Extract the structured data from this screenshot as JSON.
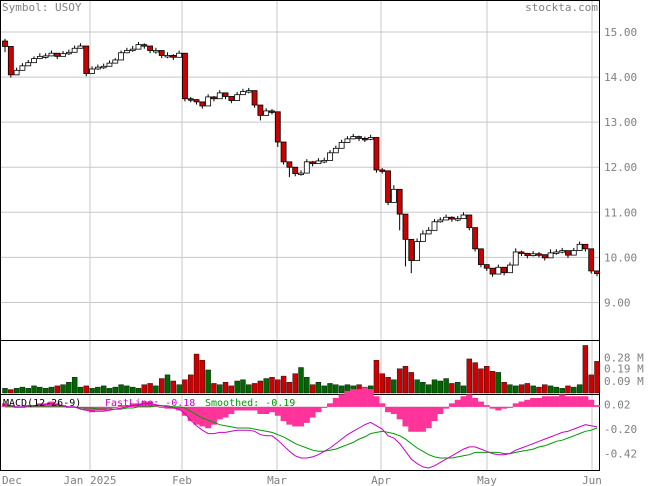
{
  "header": {
    "symbol_text": "Symbol: USOY",
    "site": "stockta.com"
  },
  "macd": {
    "title": "MACD(12-26-9)",
    "fast_text": "FastLine: -0.18",
    "smooth_text": "Smoothed: -0.19",
    "fast_color": "#cc00cc",
    "smooth_color": "#009900",
    "hist_color": "#ff3399"
  },
  "colors": {
    "up": "#ffffff",
    "down": "#cc0000",
    "vol_up": "#006600",
    "vol_down": "#cc0000",
    "grid": "#c8c8c8",
    "axis_text": "#808080"
  },
  "chart_data": [
    {
      "type": "candlestick",
      "title": "",
      "ylabel": "",
      "ylim": [
        8.3,
        15.4
      ],
      "yticks": [
        9.0,
        10.0,
        11.0,
        12.0,
        13.0,
        14.0,
        15.0
      ],
      "ytick_labels": [
        "9.00",
        "10.00",
        "11.00",
        "12.00",
        "13.00",
        "14.00",
        "15.00"
      ],
      "x_labels": [
        "Dec",
        "Jan 2025",
        "Feb",
        "Mar",
        "Apr",
        "May",
        "Jun"
      ],
      "closes": [
        14.68,
        14.05,
        14.15,
        14.25,
        14.32,
        14.41,
        14.46,
        14.47,
        14.53,
        14.46,
        14.52,
        14.55,
        14.64,
        14.69,
        14.08,
        14.18,
        14.22,
        14.24,
        14.31,
        14.38,
        14.54,
        14.59,
        14.62,
        14.72,
        14.69,
        14.59,
        14.59,
        14.48,
        14.48,
        14.44,
        14.53,
        13.52,
        13.5,
        13.45,
        13.36,
        13.56,
        13.52,
        13.65,
        13.57,
        13.48,
        13.61,
        13.68,
        13.7,
        13.38,
        13.15,
        13.25,
        13.23,
        12.56,
        12.12,
        12.0,
        11.86,
        11.87,
        12.12,
        12.08,
        12.14,
        12.15,
        12.32,
        12.42,
        12.55,
        12.63,
        12.68,
        12.64,
        12.62,
        12.66,
        11.94,
        11.92,
        11.22,
        11.51,
        10.96,
        10.4,
        9.93,
        10.35,
        10.52,
        10.6,
        10.79,
        10.83,
        10.89,
        10.85,
        10.86,
        10.94,
        10.66,
        10.19,
        9.84,
        9.76,
        9.63,
        9.78,
        9.66,
        9.83,
        10.12,
        10.09,
        10.04,
        10.08,
        10.06,
        9.99,
        10.1,
        10.12,
        10.15,
        10.05,
        10.15,
        10.29,
        10.19,
        9.7,
        9.64
      ],
      "highs": [
        14.85,
        14.1,
        14.21,
        14.31,
        14.38,
        14.46,
        14.53,
        14.53,
        14.59,
        14.53,
        14.58,
        14.61,
        14.7,
        14.75,
        14.13,
        14.24,
        14.28,
        14.3,
        14.37,
        14.42,
        14.59,
        14.65,
        14.69,
        14.78,
        14.75,
        14.64,
        14.65,
        14.54,
        14.55,
        14.51,
        14.59,
        13.58,
        13.56,
        13.51,
        13.43,
        13.62,
        13.58,
        13.71,
        13.63,
        13.54,
        13.67,
        13.74,
        13.76,
        13.44,
        13.22,
        13.31,
        13.29,
        12.7,
        12.2,
        12.07,
        11.92,
        11.93,
        12.18,
        12.14,
        12.2,
        12.21,
        12.38,
        12.48,
        12.61,
        12.69,
        12.74,
        12.7,
        12.68,
        12.72,
        12.0,
        11.98,
        11.28,
        11.6,
        11.02,
        10.6,
        10.05,
        10.42,
        10.6,
        10.67,
        10.85,
        10.89,
        10.95,
        10.91,
        10.92,
        11.0,
        10.88,
        10.25,
        9.9,
        9.82,
        9.69,
        9.84,
        9.72,
        9.89,
        10.2,
        10.15,
        10.1,
        10.14,
        10.12,
        10.06,
        10.18,
        10.18,
        10.21,
        10.14,
        10.21,
        10.35,
        10.25,
        9.76,
        9.7
      ],
      "lows": [
        14.55,
        13.99,
        14.09,
        14.19,
        14.26,
        14.35,
        14.4,
        14.41,
        14.47,
        14.4,
        14.46,
        14.49,
        14.58,
        14.63,
        14.02,
        14.12,
        14.16,
        14.18,
        14.25,
        14.32,
        14.48,
        14.53,
        14.56,
        14.66,
        14.63,
        14.53,
        14.52,
        14.42,
        14.42,
        14.38,
        14.47,
        13.46,
        13.44,
        13.39,
        13.3,
        13.5,
        13.46,
        13.59,
        13.51,
        13.42,
        13.55,
        13.62,
        13.64,
        13.32,
        13.04,
        13.19,
        13.17,
        12.45,
        12.06,
        11.78,
        11.8,
        11.81,
        12.06,
        12.02,
        12.08,
        12.09,
        12.26,
        12.36,
        12.49,
        12.57,
        12.62,
        12.58,
        12.56,
        12.6,
        11.88,
        11.86,
        11.16,
        11.45,
        10.6,
        9.8,
        9.65,
        10.28,
        10.46,
        10.54,
        10.73,
        10.77,
        10.83,
        10.79,
        10.8,
        10.88,
        10.6,
        10.13,
        9.78,
        9.7,
        9.57,
        9.72,
        9.6,
        9.77,
        10.06,
        10.03,
        9.98,
        10.02,
        10.0,
        9.93,
        10.04,
        10.06,
        10.09,
        9.99,
        10.09,
        10.23,
        10.13,
        9.64,
        9.58
      ],
      "volumes": [
        0.03,
        0.02,
        0.03,
        0.04,
        0.03,
        0.05,
        0.04,
        0.03,
        0.04,
        0.05,
        0.06,
        0.08,
        0.12,
        0.04,
        0.05,
        0.03,
        0.04,
        0.05,
        0.03,
        0.04,
        0.06,
        0.05,
        0.04,
        0.03,
        0.06,
        0.07,
        0.05,
        0.11,
        0.14,
        0.09,
        0.06,
        0.1,
        0.14,
        0.31,
        0.26,
        0.18,
        0.07,
        0.06,
        0.08,
        0.05,
        0.09,
        0.1,
        0.06,
        0.07,
        0.09,
        0.11,
        0.12,
        0.1,
        0.13,
        0.08,
        0.15,
        0.2,
        0.12,
        0.06,
        0.08,
        0.05,
        0.07,
        0.06,
        0.05,
        0.06,
        0.05,
        0.06,
        0.04,
        0.05,
        0.26,
        0.15,
        0.12,
        0.1,
        0.19,
        0.21,
        0.16,
        0.1,
        0.08,
        0.06,
        0.1,
        0.09,
        0.11,
        0.07,
        0.08,
        0.05,
        0.27,
        0.24,
        0.19,
        0.21,
        0.17,
        0.16,
        0.08,
        0.06,
        0.05,
        0.06,
        0.07,
        0.05,
        0.04,
        0.06,
        0.05,
        0.04,
        0.03,
        0.05,
        0.04,
        0.06,
        0.38,
        0.14,
        0.25
      ],
      "vol_ylim": [
        0,
        0.4
      ],
      "vol_ticks": [
        0.09,
        0.19,
        0.28
      ],
      "vol_tick_labels": [
        "0.09 M",
        "0.19 M",
        "0.28 M"
      ]
    },
    {
      "type": "line",
      "title": "MACD(12-26-9)",
      "ylim": [
        -0.55,
        0.08
      ],
      "yticks": [
        0.02,
        -0.2,
        -0.42
      ],
      "ytick_labels": [
        "0.02",
        "-0.20",
        "-0.42"
      ],
      "series": [
        {
          "name": "FastLine",
          "values": [
            0.02,
            0.01,
            0.0,
            0.0,
            0.01,
            0.01,
            0.02,
            0.02,
            0.03,
            0.02,
            0.01,
            0.0,
            0.0,
            -0.02,
            -0.03,
            -0.04,
            -0.04,
            -0.04,
            -0.03,
            -0.02,
            -0.01,
            0.0,
            0.01,
            0.02,
            0.03,
            0.03,
            0.02,
            0.01,
            0.0,
            -0.01,
            -0.02,
            -0.06,
            -0.12,
            -0.17,
            -0.21,
            -0.24,
            -0.24,
            -0.23,
            -0.23,
            -0.22,
            -0.21,
            -0.21,
            -0.21,
            -0.22,
            -0.25,
            -0.26,
            -0.26,
            -0.3,
            -0.35,
            -0.4,
            -0.44,
            -0.46,
            -0.46,
            -0.45,
            -0.43,
            -0.4,
            -0.37,
            -0.33,
            -0.29,
            -0.25,
            -0.22,
            -0.19,
            -0.16,
            -0.14,
            -0.17,
            -0.2,
            -0.26,
            -0.28,
            -0.33,
            -0.4,
            -0.47,
            -0.51,
            -0.54,
            -0.55,
            -0.53,
            -0.5,
            -0.47,
            -0.44,
            -0.41,
            -0.38,
            -0.36,
            -0.36,
            -0.38,
            -0.4,
            -0.42,
            -0.43,
            -0.43,
            -0.42,
            -0.39,
            -0.37,
            -0.35,
            -0.33,
            -0.31,
            -0.29,
            -0.27,
            -0.25,
            -0.23,
            -0.22,
            -0.2,
            -0.18,
            -0.16,
            -0.17,
            -0.18
          ]
        },
        {
          "name": "Smoothed",
          "values": [
            0.0,
            0.0,
            0.0,
            0.0,
            0.0,
            0.0,
            0.0,
            0.0,
            0.0,
            0.0,
            0.0,
            0.0,
            0.0,
            -0.01,
            -0.01,
            -0.01,
            -0.02,
            -0.02,
            -0.02,
            -0.02,
            -0.02,
            -0.01,
            -0.01,
            0.0,
            0.0,
            0.0,
            0.01,
            0.01,
            0.01,
            0.0,
            0.0,
            -0.01,
            -0.04,
            -0.07,
            -0.1,
            -0.12,
            -0.14,
            -0.16,
            -0.17,
            -0.18,
            -0.19,
            -0.19,
            -0.19,
            -0.2,
            -0.21,
            -0.22,
            -0.23,
            -0.25,
            -0.27,
            -0.3,
            -0.33,
            -0.35,
            -0.37,
            -0.39,
            -0.4,
            -0.4,
            -0.39,
            -0.38,
            -0.36,
            -0.34,
            -0.32,
            -0.29,
            -0.27,
            -0.24,
            -0.23,
            -0.22,
            -0.23,
            -0.24,
            -0.26,
            -0.29,
            -0.33,
            -0.37,
            -0.4,
            -0.43,
            -0.45,
            -0.46,
            -0.46,
            -0.46,
            -0.45,
            -0.44,
            -0.43,
            -0.41,
            -0.41,
            -0.41,
            -0.41,
            -0.41,
            -0.42,
            -0.42,
            -0.41,
            -0.4,
            -0.39,
            -0.38,
            -0.36,
            -0.35,
            -0.33,
            -0.31,
            -0.3,
            -0.28,
            -0.26,
            -0.24,
            -0.22,
            -0.21,
            -0.19
          ]
        }
      ]
    }
  ]
}
